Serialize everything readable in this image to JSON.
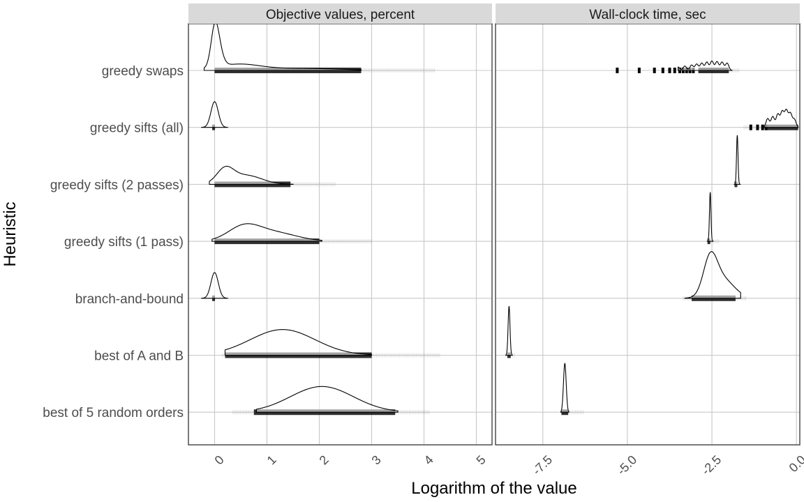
{
  "chart_data": {
    "type": "ridgeline",
    "xlabel": "Logarithm of the value",
    "ylabel": "Heuristic",
    "categories": [
      "greedy swaps",
      "greedy sifts (all)",
      "greedy sifts (2 passes)",
      "greedy sifts (1 pass)",
      "branch-and-bound",
      "best of A and B",
      "best of 5 random orders"
    ],
    "grid": true,
    "panels": [
      {
        "title": "Objective values, percent",
        "xlim": [
          -0.5,
          5.3
        ],
        "xticks": [
          0,
          1,
          2,
          3,
          4,
          5
        ],
        "xtick_labels": [
          "0",
          "1",
          "2",
          "3",
          "4",
          "5"
        ],
        "series": [
          {
            "name": "greedy swaps",
            "components": [
              {
                "mu": 0.0,
                "sigma": 0.07,
                "w": 1.0
              },
              {
                "mu": 0.05,
                "sigma": 0.09,
                "w": 0.85
              },
              {
                "mu": 0.45,
                "sigma": 0.4,
                "w": 0.22
              },
              {
                "mu": 1.6,
                "sigma": 0.8,
                "w": 0.08
              }
            ],
            "range": [
              -0.2,
              2.8
            ],
            "rug": [
              0.0,
              2.8
            ],
            "rug_fade": [
              0.0,
              4.2
            ]
          },
          {
            "name": "greedy sifts (all)",
            "components": [
              {
                "mu": 0.0,
                "sigma": 0.07,
                "w": 1.0
              }
            ],
            "range": [
              -0.25,
              0.25
            ],
            "rug": [
              -0.02,
              0.02
            ],
            "rug_fade": [
              -0.02,
              0.02
            ]
          },
          {
            "name": "greedy sifts (2 passes)",
            "components": [
              {
                "mu": 0.2,
                "sigma": 0.16,
                "w": 0.55
              },
              {
                "mu": 0.6,
                "sigma": 0.3,
                "w": 0.35
              }
            ],
            "range": [
              -0.1,
              1.5
            ],
            "rug": [
              0.0,
              1.45
            ],
            "rug_fade": [
              0.0,
              2.3
            ]
          },
          {
            "name": "greedy sifts (1 pass)",
            "components": [
              {
                "mu": 0.55,
                "sigma": 0.3,
                "w": 0.5
              },
              {
                "mu": 1.1,
                "sigma": 0.45,
                "w": 0.35
              }
            ],
            "range": [
              -0.05,
              2.05
            ],
            "rug": [
              0.0,
              2.0
            ],
            "rug_fade": [
              0.0,
              3.0
            ]
          },
          {
            "name": "branch-and-bound",
            "components": [
              {
                "mu": 0.0,
                "sigma": 0.07,
                "w": 1.0
              }
            ],
            "range": [
              -0.25,
              0.25
            ],
            "rug": [
              -0.02,
              0.02
            ],
            "rug_fade": [
              -0.02,
              0.02
            ]
          },
          {
            "name": "best of A and B",
            "components": [
              {
                "mu": 1.3,
                "sigma": 0.62,
                "w": 1.0
              }
            ],
            "range": [
              0.2,
              3.0
            ],
            "rug": [
              0.2,
              3.0
            ],
            "rug_fade": [
              0.15,
              4.3
            ]
          },
          {
            "name": "best of 5 random orders",
            "components": [
              {
                "mu": 2.05,
                "sigma": 0.6,
                "w": 1.0
              }
            ],
            "range": [
              0.8,
              3.5
            ],
            "rug": [
              0.75,
              3.45
            ],
            "rug_fade": [
              0.35,
              4.1
            ]
          }
        ]
      },
      {
        "title": "Wall-clock time, sec",
        "xlim": [
          -8.9,
          0.1
        ],
        "xticks": [
          -7.5,
          -5.0,
          -2.5,
          0.0
        ],
        "xtick_labels": [
          "-7.5",
          "-5.0",
          "-2.5",
          "0.0"
        ],
        "series": [
          {
            "name": "greedy swaps",
            "components": [
              {
                "mu": -4.0,
                "sigma": 0.05,
                "w": 0.06
              },
              {
                "mu": -3.75,
                "sigma": 0.05,
                "w": 0.06
              },
              {
                "mu": -3.5,
                "sigma": 0.05,
                "w": 0.07
              },
              {
                "mu": -3.3,
                "sigma": 0.05,
                "w": 0.09
              },
              {
                "mu": -3.1,
                "sigma": 0.05,
                "w": 0.11
              },
              {
                "mu": -2.95,
                "sigma": 0.05,
                "w": 0.13
              },
              {
                "mu": -2.8,
                "sigma": 0.05,
                "w": 0.15
              },
              {
                "mu": -2.65,
                "sigma": 0.05,
                "w": 0.17
              },
              {
                "mu": -2.5,
                "sigma": 0.05,
                "w": 0.19
              },
              {
                "mu": -2.35,
                "sigma": 0.05,
                "w": 0.18
              },
              {
                "mu": -2.2,
                "sigma": 0.05,
                "w": 0.17
              },
              {
                "mu": -2.05,
                "sigma": 0.05,
                "w": 0.15
              }
            ],
            "range": [
              -3.5,
              -1.9
            ],
            "rug": [
              -2.9,
              -2.0
            ],
            "rug_fade": [
              -2.9,
              -1.7
            ],
            "rug_clusters": [
              -5.3,
              -4.65,
              -4.2,
              -3.95,
              -3.75,
              -3.6,
              -3.45,
              -3.35,
              -3.25,
              -3.15,
              -3.05
            ]
          },
          {
            "name": "greedy sifts (all)",
            "components": [
              {
                "mu": -0.85,
                "sigma": 0.05,
                "w": 0.18
              },
              {
                "mu": -0.7,
                "sigma": 0.05,
                "w": 0.22
              },
              {
                "mu": -0.55,
                "sigma": 0.05,
                "w": 0.27
              },
              {
                "mu": -0.42,
                "sigma": 0.05,
                "w": 0.32
              },
              {
                "mu": -0.3,
                "sigma": 0.05,
                "w": 0.34
              },
              {
                "mu": -0.18,
                "sigma": 0.05,
                "w": 0.28
              },
              {
                "mu": -0.06,
                "sigma": 0.05,
                "w": 0.16
              }
            ],
            "range": [
              -0.95,
              0.05
            ],
            "rug": [
              -0.9,
              0.05
            ],
            "rug_fade": [
              -1.55,
              0.1
            ],
            "rug_clusters": [
              -1.35,
              -1.15,
              -1.0,
              -0.9
            ]
          },
          {
            "name": "greedy sifts (2 passes)",
            "components": [
              {
                "mu": -1.75,
                "sigma": 0.022,
                "w": 1.0
              }
            ],
            "range": [
              -1.84,
              -1.66
            ],
            "rug": [
              -1.79,
              -1.71
            ],
            "rug_fade": [
              -1.79,
              -1.71
            ]
          },
          {
            "name": "greedy sifts (1 pass)",
            "components": [
              {
                "mu": -2.55,
                "sigma": 0.022,
                "w": 1.0
              }
            ],
            "range": [
              -2.64,
              -2.46
            ],
            "rug": [
              -2.59,
              -2.51
            ],
            "rug_fade": [
              -2.59,
              -2.3
            ]
          },
          {
            "name": "branch-and-bound",
            "components": [
              {
                "mu": -2.55,
                "sigma": 0.2,
                "w": 0.7
              },
              {
                "mu": -2.2,
                "sigma": 0.35,
                "w": 0.4
              }
            ],
            "range": [
              -3.3,
              -1.65
            ],
            "rug": [
              -3.1,
              -1.8
            ],
            "rug_fade": [
              -3.35,
              -1.5
            ]
          },
          {
            "name": "best of A and B",
            "components": [
              {
                "mu": -8.5,
                "sigma": 0.028,
                "w": 1.0
              }
            ],
            "range": [
              -8.6,
              -8.4
            ],
            "rug": [
              -8.55,
              -8.45
            ],
            "rug_fade": [
              -8.55,
              -8.35
            ]
          },
          {
            "name": "best of 5 random orders",
            "components": [
              {
                "mu": -6.85,
                "sigma": 0.04,
                "w": 1.0
              }
            ],
            "range": [
              -6.97,
              -6.73
            ],
            "rug": [
              -6.95,
              -6.75
            ],
            "rug_fade": [
              -6.95,
              -6.3
            ]
          }
        ]
      }
    ]
  }
}
